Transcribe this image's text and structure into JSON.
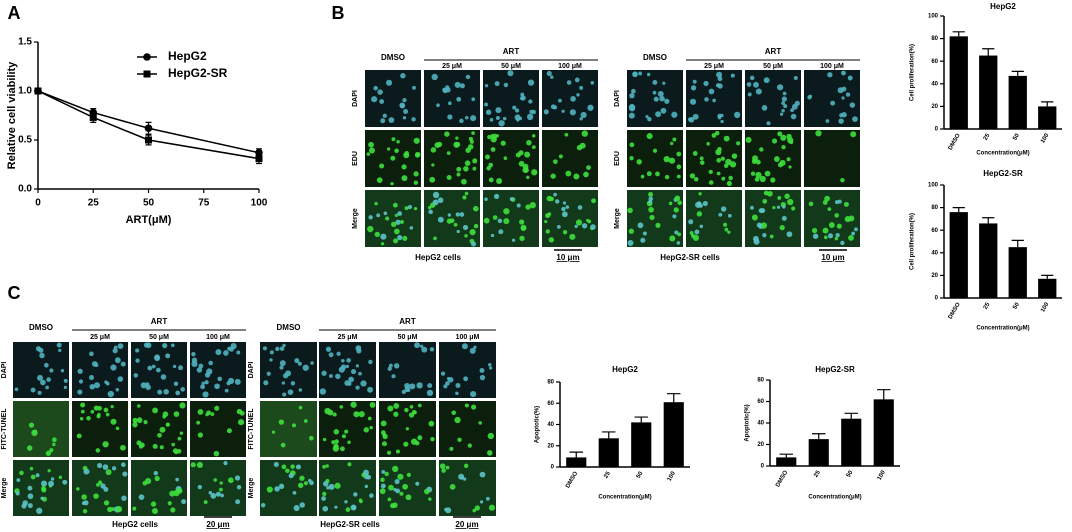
{
  "panel_labels": [
    "A",
    "B",
    "C"
  ],
  "microscopy": [
    {
      "dmso": "DMSO",
      "treatment": "ART",
      "doses": [
        "25 μM",
        "50 μM",
        "100 μM"
      ],
      "rows": [
        "DAPI",
        "EDU",
        "Merge"
      ],
      "caption": "HepG2 cells",
      "scale_bar": "10 μm"
    },
    {
      "dmso": "DMSO",
      "treatment": "ART",
      "doses": [
        "25 μM",
        "50 μM",
        "100 μM"
      ],
      "rows": [
        "DAPI",
        "EDU",
        "Merge"
      ],
      "caption": "HepG2-SR cells",
      "scale_bar": "10 μm"
    },
    {
      "dmso": "DMSO",
      "treatment": "ART",
      "doses": [
        "25 μM",
        "50 μM",
        "100 μM"
      ],
      "rows": [
        "DAPI",
        "FITC-TUNEL",
        "Merge"
      ],
      "caption": "HepG2 cells",
      "scale_bar": "20 μm"
    },
    {
      "dmso": "DMSO",
      "treatment": "ART",
      "doses": [
        "25 μM",
        "50 μM",
        "100 μM"
      ],
      "rows": [
        "DAPI",
        "FITC-TUNEL",
        "Merge"
      ],
      "caption": "HepG2-SR cells",
      "scale_bar": "20 μm"
    }
  ],
  "chart_data": [
    {
      "type": "line",
      "xlabel": "ART(μM)",
      "ylabel": "Relative cell viability",
      "x": [
        0,
        25,
        50,
        100
      ],
      "xlim": [
        0,
        100
      ],
      "xticks": [
        0,
        25,
        50,
        75,
        100
      ],
      "ylim": [
        0,
        1.5
      ],
      "yticks": [
        {
          "value": 0,
          "label": "0.0"
        },
        0.5,
        {
          "value": 1,
          "label": "1.0"
        },
        1.5
      ],
      "series": [
        {
          "name": "HepG2",
          "color": "#000000",
          "marker": "circle",
          "values": [
            1.0,
            0.78,
            0.62,
            0.37
          ],
          "errors": [
            0.02,
            0.04,
            0.06,
            0.04
          ]
        },
        {
          "name": "HepG2-SR",
          "color": "#000000",
          "marker": "square",
          "values": [
            1.0,
            0.73,
            0.5,
            0.31
          ],
          "errors": [
            0.02,
            0.05,
            0.05,
            0.05
          ]
        }
      ]
    },
    {
      "type": "bar",
      "title": "HepG2",
      "xlabel": "Concentration(μM)",
      "ylabel": "Cell proliferation(%)",
      "categories": [
        "DMSO",
        "25",
        "50",
        "100"
      ],
      "values": [
        82,
        65,
        47,
        20
      ],
      "errors": [
        4,
        6,
        4,
        4
      ],
      "color": "#000000",
      "ylim": [
        0,
        100
      ],
      "yticks": [
        0,
        20,
        40,
        60,
        80,
        100
      ]
    },
    {
      "type": "bar",
      "title": "HepG2-SR",
      "xlabel": "Concentration(μM)",
      "ylabel": "Cell proliferation(%)",
      "categories": [
        "DMSO",
        "25",
        "50",
        "100"
      ],
      "values": [
        76,
        66,
        45,
        17
      ],
      "errors": [
        4,
        5,
        6,
        3
      ],
      "color": "#000000",
      "ylim": [
        0,
        100
      ],
      "yticks": [
        0,
        20,
        40,
        60,
        80,
        100
      ]
    },
    {
      "type": "bar",
      "title": "HepG2",
      "xlabel": "Concentration(μM)",
      "ylabel": "Apoptotic(%)",
      "categories": [
        "DMSO",
        "25",
        "50",
        "100"
      ],
      "values": [
        9,
        27,
        42,
        61
      ],
      "errors": [
        5,
        6,
        5,
        8
      ],
      "color": "#000000",
      "ylim": [
        0,
        80
      ],
      "yticks": [
        0,
        20,
        40,
        60,
        80
      ]
    },
    {
      "type": "bar",
      "title": "HepG2-SR",
      "xlabel": "Concentration(μM)",
      "ylabel": "Apoptotic(%)",
      "categories": [
        "DMSO",
        "25",
        "50",
        "100"
      ],
      "values": [
        8,
        25,
        44,
        62
      ],
      "errors": [
        3,
        5,
        5,
        9
      ],
      "color": "#000000",
      "ylim": [
        0,
        80
      ],
      "yticks": [
        0,
        20,
        40,
        60,
        80
      ]
    }
  ]
}
